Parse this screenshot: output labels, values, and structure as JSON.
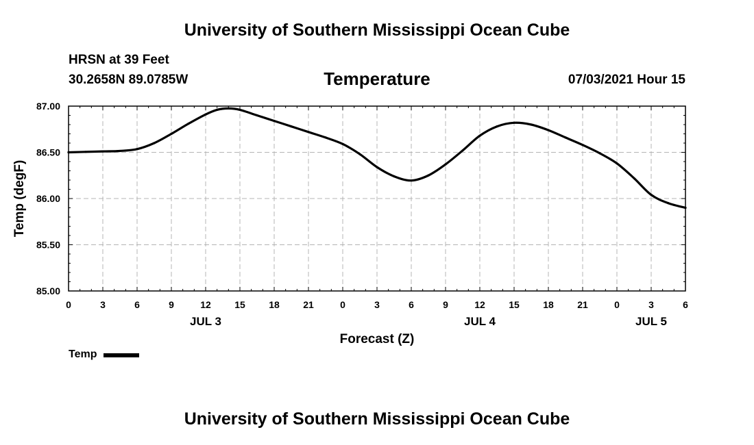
{
  "header": {
    "title": "University of Southern Mississippi Ocean Cube",
    "station": "HRSN at 39 Feet",
    "coords": "30.2658N  89.0785W",
    "variable": "Temperature",
    "datetime": "07/03/2021 Hour 15"
  },
  "footer": {
    "title": "University of Southern Mississippi Ocean Cube"
  },
  "legend": {
    "label": "Temp"
  },
  "chart_data": {
    "type": "line",
    "title": "Temperature",
    "xlabel": "Forecast (Z)",
    "ylabel": "Temp (degF)",
    "ylim": [
      85.0,
      87.0
    ],
    "xlim": [
      0,
      54
    ],
    "grid": true,
    "y_ticks": [
      85.0,
      85.5,
      86.0,
      86.5,
      87.0
    ],
    "y_tick_labels": [
      "85.00",
      "85.50",
      "86.00",
      "86.50",
      "87.00"
    ],
    "x_ticks": [
      0,
      3,
      6,
      9,
      12,
      15,
      18,
      21,
      24,
      27,
      30,
      33,
      36,
      39,
      42,
      45,
      48,
      51,
      54
    ],
    "x_tick_labels": [
      "0",
      "3",
      "6",
      "9",
      "12",
      "15",
      "18",
      "21",
      "0",
      "3",
      "6",
      "9",
      "12",
      "15",
      "18",
      "21",
      "0",
      "3",
      "6"
    ],
    "date_labels": [
      {
        "label": "JUL 3",
        "x": 12
      },
      {
        "label": "JUL 4",
        "x": 36
      },
      {
        "label": "JUL 5",
        "x": 51
      }
    ],
    "series": [
      {
        "name": "Temp",
        "color": "#000000",
        "x": [
          0,
          1.5,
          3,
          4.5,
          6,
          7.5,
          9,
          10.5,
          12,
          13,
          14,
          15,
          16.5,
          18,
          19.5,
          21,
          22.5,
          24,
          25.5,
          27,
          28.5,
          30,
          31.5,
          33,
          34.5,
          36,
          37.5,
          39,
          40.5,
          42,
          43.5,
          45,
          46.5,
          48,
          49.5,
          51,
          52.5,
          54
        ],
        "values": [
          86.5,
          86.505,
          86.51,
          86.515,
          86.535,
          86.6,
          86.7,
          86.81,
          86.91,
          86.96,
          86.975,
          86.96,
          86.9,
          86.84,
          86.78,
          86.72,
          86.66,
          86.59,
          86.48,
          86.34,
          86.24,
          86.195,
          86.25,
          86.37,
          86.52,
          86.68,
          86.78,
          86.82,
          86.8,
          86.74,
          86.66,
          86.58,
          86.49,
          86.38,
          86.22,
          86.04,
          85.95,
          85.9
        ]
      }
    ]
  }
}
